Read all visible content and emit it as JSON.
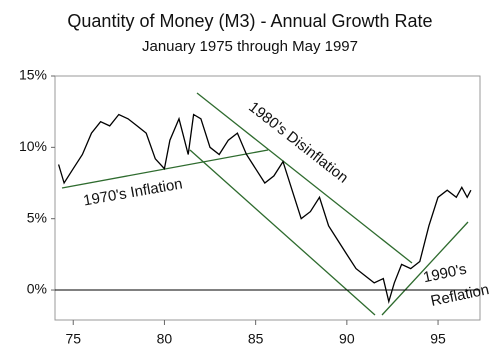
{
  "chart_data": {
    "type": "line",
    "title": "Quantity of Money (M3) - Annual Growth Rate",
    "subtitle": "January 1975 through May 1997",
    "annotations": [
      "1980's Disinflation",
      "1970's Inflation",
      "1990's",
      "Reflation"
    ],
    "xlim": [
      74,
      97.3
    ],
    "xticks": [
      75,
      80,
      85,
      90,
      95
    ],
    "ylim": [
      -2.1,
      15
    ],
    "yticks": [
      {
        "value": 0,
        "label": "0%"
      },
      {
        "value": 5,
        "label": "5%"
      },
      {
        "value": 10,
        "label": "10%"
      },
      {
        "value": 15,
        "label": "15%"
      }
    ],
    "zero_line": true,
    "series": [
      {
        "color": "#000000",
        "x": [
          74.2,
          74.5,
          75,
          75.5,
          76,
          76.5,
          77,
          77.5,
          78,
          78.5,
          79,
          79.5,
          80,
          80.3,
          80.8,
          81,
          81.3,
          81.6,
          82,
          82.5,
          83,
          83.5,
          84,
          84.5,
          85,
          85.5,
          86,
          86.5,
          87,
          87.5,
          88,
          88.5,
          89,
          89.5,
          90,
          90.5,
          91,
          91.5,
          92,
          92.3,
          92.6,
          93,
          93.5,
          94,
          94.5,
          95,
          95.5,
          96,
          96.3,
          96.6,
          96.8
        ],
        "values": [
          8.8,
          7.5,
          8.5,
          9.5,
          11.0,
          11.8,
          11.5,
          12.3,
          12.0,
          11.5,
          11.0,
          9.2,
          8.5,
          10.5,
          12.0,
          11.0,
          9.5,
          12.3,
          12.0,
          10.0,
          9.5,
          10.5,
          11.0,
          9.5,
          8.5,
          7.5,
          8.0,
          9.0,
          7.0,
          5.0,
          5.5,
          6.5,
          4.5,
          3.5,
          2.5,
          1.5,
          1.0,
          0.5,
          0.8,
          -0.8,
          0.5,
          1.8,
          1.5,
          2.0,
          4.5,
          6.5,
          7.0,
          6.5,
          7.2,
          6.5,
          7.0
        ]
      }
    ]
  }
}
